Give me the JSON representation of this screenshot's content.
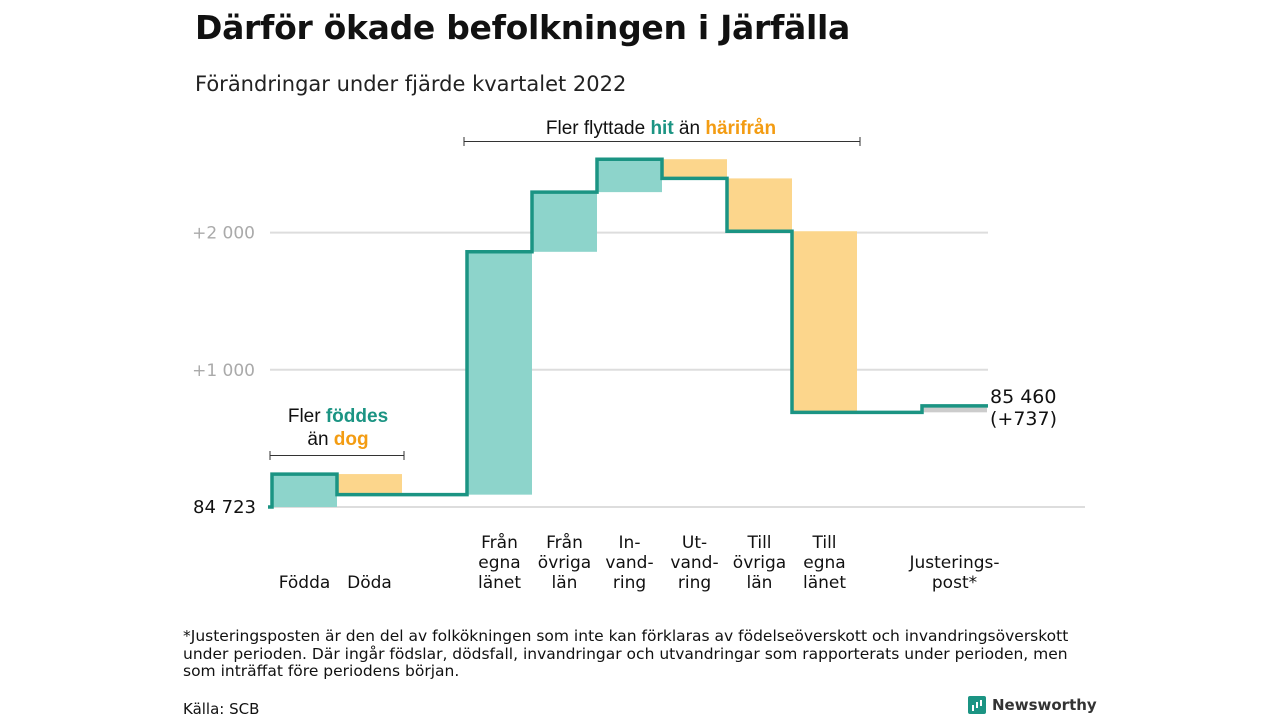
{
  "title": "Därför ökade befolkningen i Järfälla",
  "subtitle": "Förändringar under fjärde kvartalet 2022",
  "colors": {
    "increase_line": "#1b9483",
    "increase_fill": "#8dd4cb",
    "decrease_fill": "#fcd68c",
    "adjustment_fill": "#cccccc",
    "orange_text": "#f39c12",
    "teal_text": "#1b9483",
    "grid": "#dddddd",
    "tick_text": "#aaaaaa"
  },
  "annotations": {
    "births": {
      "line1_prefix": "Fler ",
      "line1_word": "föddes",
      "line2_prefix": "än ",
      "line2_word": "dog"
    },
    "migration": {
      "prefix": "Fler flyttade ",
      "word1": "hit",
      "middle": " än ",
      "word2": "härifrån"
    }
  },
  "chart_data": {
    "type": "waterfall",
    "title": "Därför ökade befolkningen i Järfälla",
    "subtitle": "Förändringar under fjärde kvartalet 2022",
    "base": 84723,
    "base_label": "84 723",
    "end_label": "85 460",
    "end_change_label": "(+737)",
    "y_ticks": [
      {
        "value": 85723,
        "label": "+1 000"
      },
      {
        "value": 86723,
        "label": "+2 000"
      }
    ],
    "ylim": [
      84723,
      87000
    ],
    "grid": true,
    "steps": [
      {
        "label_lines": [
          "Födda"
        ],
        "value": 240,
        "kind": "in"
      },
      {
        "label_lines": [
          "Döda"
        ],
        "value": -150,
        "kind": "out"
      },
      {
        "label_lines": [
          "Från",
          "egna",
          "länet"
        ],
        "value": 1770,
        "kind": "in"
      },
      {
        "label_lines": [
          "Från",
          "övriga",
          "län"
        ],
        "value": 435,
        "kind": "in"
      },
      {
        "label_lines": [
          "In-",
          "vand-",
          "ring"
        ],
        "value": 240,
        "kind": "in"
      },
      {
        "label_lines": [
          "Ut-",
          "vand-",
          "ring"
        ],
        "value": -140,
        "kind": "out"
      },
      {
        "label_lines": [
          "Till",
          "övriga",
          "län"
        ],
        "value": -385,
        "kind": "out"
      },
      {
        "label_lines": [
          "Till",
          "egna",
          "länet"
        ],
        "value": -1320,
        "kind": "out"
      },
      {
        "label_lines": [
          "Justerings-",
          "post*"
        ],
        "value": 47,
        "kind": "adj"
      }
    ]
  },
  "footnote": "*Justeringsposten är den del av folkökningen som inte kan förklaras av födelseöverskott och invandringsöverskott under perioden. Där ingår födslar, dödsfall, invandringar och utvandringar som rapporterats under perioden, men som inträffat före periodens början.",
  "source": "Källa: SCB",
  "brand": {
    "name": "Newsworthy",
    "icon": "bar-chart-icon"
  }
}
